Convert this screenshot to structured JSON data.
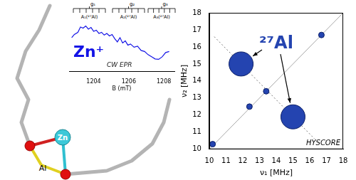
{
  "chart_data": [
    {
      "type": "line",
      "title": "Zn⁺",
      "annotation": "CW EPR",
      "x_label": "B (mT)",
      "x": [
        1202.75,
        1202.9,
        1203.1,
        1203.25,
        1203.4,
        1203.55,
        1203.7,
        1203.85,
        1204.0,
        1204.15,
        1204.3,
        1204.45,
        1204.6,
        1204.75,
        1204.9,
        1205.05,
        1205.2,
        1205.35,
        1205.5,
        1205.65,
        1205.8,
        1205.95,
        1206.1,
        1206.3,
        1206.5,
        1206.7,
        1206.9,
        1207.1,
        1207.3,
        1207.5,
        1207.7,
        1207.9,
        1208.1,
        1208.3
      ],
      "values": [
        0.3,
        0.45,
        0.55,
        0.8,
        0.75,
        0.85,
        0.7,
        0.78,
        0.6,
        0.65,
        0.5,
        0.55,
        0.42,
        0.5,
        0.38,
        0.45,
        0.25,
        0.1,
        0.3,
        0.05,
        0.15,
        -0.05,
        0.0,
        -0.15,
        -0.1,
        -0.3,
        -0.35,
        -0.5,
        -0.6,
        -0.7,
        -0.72,
        -0.6,
        -0.4,
        -0.35
      ],
      "color": "#1414e6",
      "xlim": [
        1202.6,
        1208.6
      ],
      "xticks": [
        1204,
        1206,
        1208
      ],
      "ylim": [
        -1.3,
        1
      ],
      "tick_labels": "x",
      "grid": false,
      "hyperfine": {
        "g": [
          "g₁",
          "g₂",
          "g₃"
        ],
        "A": [
          "A₁(²⁷Al)",
          "A₂(²⁷Al)",
          "A₃(²⁷Al)"
        ]
      }
    },
    {
      "type": "bubble",
      "title": "²⁷Al",
      "annotation": "HYSCORE",
      "x_label": "ν₁ [MHz]",
      "y_label": "ν₂ [MHz]",
      "xlim": [
        10,
        18
      ],
      "ylim": [
        10,
        18
      ],
      "xticks": [
        10,
        11,
        12,
        13,
        14,
        15,
        16,
        17,
        18
      ],
      "yticks": [
        10,
        11,
        12,
        13,
        14,
        15,
        16,
        17,
        18
      ],
      "grid": false,
      "series": [
        {
          "type": "bubble",
          "color": "#2444b0",
          "x": [
            11.9,
            15.0,
            12.4,
            13.4,
            16.7,
            10.2
          ],
          "values": [
            15.0,
            11.9,
            12.5,
            13.4,
            16.7,
            10.3
          ],
          "size": [
            17,
            17,
            4,
            4,
            4,
            4
          ]
        },
        {
          "type": "line",
          "color": "#a8a8a8",
          "line_style": "solid",
          "x": [
            10,
            18
          ],
          "values": [
            10,
            18
          ]
        },
        {
          "type": "line",
          "color": "#707070",
          "line_style": "dotted",
          "x": [
            10.3,
            16.3
          ],
          "values": [
            16.6,
            10.6
          ]
        }
      ]
    }
  ],
  "diagram": {
    "atoms": [
      "Zn",
      "Al"
    ]
  }
}
